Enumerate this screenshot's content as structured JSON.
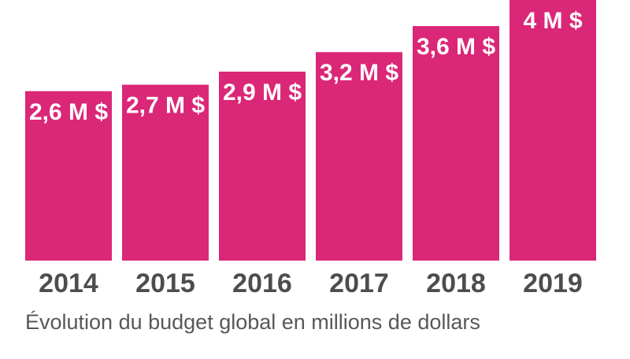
{
  "colors": {
    "bar": "#DB2777",
    "bar_label": "#FFFFFF",
    "tick_label": "#4D4D4F",
    "caption": "#58585A"
  },
  "chart_data": {
    "type": "bar",
    "categories": [
      "2014",
      "2015",
      "2016",
      "2017",
      "2018",
      "2019"
    ],
    "values": [
      2.6,
      2.7,
      2.9,
      3.2,
      3.6,
      4.0
    ],
    "data_labels": [
      "2,6 M $",
      "2,7 M $",
      "2,9 M $",
      "3,2 M $",
      "3,6 M $",
      "4 M $"
    ],
    "caption": "Évolution du budget global en millions de dollars",
    "xlabel": "",
    "ylabel": "",
    "ylim": [
      0,
      4
    ],
    "grid": false,
    "legend": "none"
  }
}
